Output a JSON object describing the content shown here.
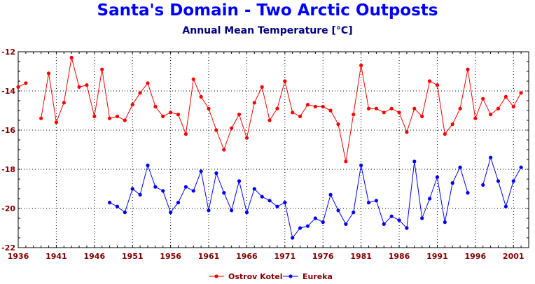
{
  "chart_data": {
    "type": "line",
    "title": "Santa's Domain - Two Arctic Outposts",
    "subtitle": "Annual Mean Temperature [°C]",
    "xlabel": "",
    "ylabel": "",
    "xlim": [
      1936,
      2003
    ],
    "ylim": [
      -22,
      -12
    ],
    "x_ticks": [
      1936,
      1941,
      1946,
      1951,
      1956,
      1961,
      1966,
      1971,
      1976,
      1981,
      1986,
      1991,
      1996,
      2001
    ],
    "y_ticks": [
      -12,
      -14,
      -16,
      -18,
      -20,
      -22
    ],
    "x_tick_labels": [
      "1936",
      "1941",
      "1946",
      "1951",
      "1956",
      "1961",
      "1966",
      "1971",
      "1976",
      "1981",
      "1986",
      "1991",
      "1996",
      "2001"
    ],
    "y_tick_labels": [
      "-12",
      "-14",
      "-16",
      "-18",
      "-20",
      "-22"
    ],
    "grid": true,
    "legend_position": "bottom-center",
    "series": [
      {
        "name": "Ostrov Kotel",
        "color": "#ff0000",
        "points": [
          [
            1936,
            -13.8
          ],
          [
            1937,
            -13.6
          ],
          [
            1939,
            -15.4
          ],
          [
            1940,
            -13.1
          ],
          [
            1941,
            -15.6
          ],
          [
            1942,
            -14.6
          ],
          [
            1943,
            -12.3
          ],
          [
            1944,
            -13.8
          ],
          [
            1945,
            -13.7
          ],
          [
            1946,
            -15.3
          ],
          [
            1947,
            -12.9
          ],
          [
            1948,
            -15.4
          ],
          [
            1949,
            -15.3
          ],
          [
            1950,
            -15.5
          ],
          [
            1951,
            -14.7
          ],
          [
            1952,
            -14.1
          ],
          [
            1953,
            -13.6
          ],
          [
            1954,
            -14.8
          ],
          [
            1955,
            -15.3
          ],
          [
            1956,
            -15.1
          ],
          [
            1957,
            -15.2
          ],
          [
            1958,
            -16.2
          ],
          [
            1959,
            -13.4
          ],
          [
            1960,
            -14.3
          ],
          [
            1961,
            -14.9
          ],
          [
            1962,
            -16.0
          ],
          [
            1963,
            -17.0
          ],
          [
            1964,
            -15.9
          ],
          [
            1965,
            -15.2
          ],
          [
            1966,
            -16.4
          ],
          [
            1967,
            -14.6
          ],
          [
            1968,
            -13.8
          ],
          [
            1969,
            -15.5
          ],
          [
            1970,
            -14.9
          ],
          [
            1971,
            -13.5
          ],
          [
            1972,
            -15.1
          ],
          [
            1973,
            -15.3
          ],
          [
            1974,
            -14.7
          ],
          [
            1975,
            -14.8
          ],
          [
            1976,
            -14.8
          ],
          [
            1977,
            -15.0
          ],
          [
            1978,
            -15.7
          ],
          [
            1979,
            -17.6
          ],
          [
            1980,
            -15.2
          ],
          [
            1981,
            -12.7
          ],
          [
            1982,
            -14.9
          ],
          [
            1983,
            -14.9
          ],
          [
            1984,
            -15.1
          ],
          [
            1985,
            -14.9
          ],
          [
            1986,
            -15.1
          ],
          [
            1987,
            -16.1
          ],
          [
            1988,
            -14.9
          ],
          [
            1989,
            -15.3
          ],
          [
            1990,
            -13.5
          ],
          [
            1991,
            -13.7
          ],
          [
            1992,
            -16.2
          ],
          [
            1993,
            -15.7
          ],
          [
            1994,
            -14.9
          ],
          [
            1995,
            -12.9
          ],
          [
            1996,
            -15.4
          ],
          [
            1997,
            -14.4
          ],
          [
            1998,
            -15.2
          ],
          [
            1999,
            -14.9
          ],
          [
            2000,
            -14.3
          ],
          [
            2001,
            -14.8
          ],
          [
            2002,
            -14.1
          ]
        ]
      },
      {
        "name": "Eureka",
        "color": "#0000ff",
        "points": [
          [
            1948,
            -19.7
          ],
          [
            1949,
            -19.9
          ],
          [
            1950,
            -20.2
          ],
          [
            1951,
            -19.0
          ],
          [
            1952,
            -19.3
          ],
          [
            1953,
            -17.8
          ],
          [
            1954,
            -18.9
          ],
          [
            1955,
            -19.1
          ],
          [
            1956,
            -20.2
          ],
          [
            1957,
            -19.7
          ],
          [
            1958,
            -18.9
          ],
          [
            1959,
            -19.1
          ],
          [
            1960,
            -18.1
          ],
          [
            1961,
            -20.1
          ],
          [
            1962,
            -18.2
          ],
          [
            1963,
            -19.2
          ],
          [
            1964,
            -20.1
          ],
          [
            1965,
            -18.6
          ],
          [
            1966,
            -20.2
          ],
          [
            1967,
            -19.0
          ],
          [
            1968,
            -19.4
          ],
          [
            1969,
            -19.6
          ],
          [
            1970,
            -19.9
          ],
          [
            1971,
            -19.7
          ],
          [
            1972,
            -21.5
          ],
          [
            1973,
            -21.0
          ],
          [
            1974,
            -20.9
          ],
          [
            1975,
            -20.5
          ],
          [
            1976,
            -20.7
          ],
          [
            1977,
            -19.3
          ],
          [
            1978,
            -20.1
          ],
          [
            1979,
            -20.8
          ],
          [
            1980,
            -20.2
          ],
          [
            1981,
            -17.8
          ],
          [
            1982,
            -19.7
          ],
          [
            1983,
            -19.6
          ],
          [
            1984,
            -20.8
          ],
          [
            1985,
            -20.4
          ],
          [
            1986,
            -20.6
          ],
          [
            1987,
            -21.0
          ],
          [
            1988,
            -17.6
          ],
          [
            1989,
            -20.5
          ],
          [
            1990,
            -19.5
          ],
          [
            1991,
            -18.4
          ],
          [
            1992,
            -20.7
          ],
          [
            1993,
            -18.7
          ],
          [
            1994,
            -17.9
          ],
          [
            1995,
            -19.2
          ],
          [
            1997,
            -18.8
          ],
          [
            1998,
            -17.4
          ],
          [
            1999,
            -18.6
          ],
          [
            2000,
            -19.9
          ],
          [
            2001,
            -18.6
          ],
          [
            2002,
            -17.9
          ]
        ]
      }
    ]
  }
}
